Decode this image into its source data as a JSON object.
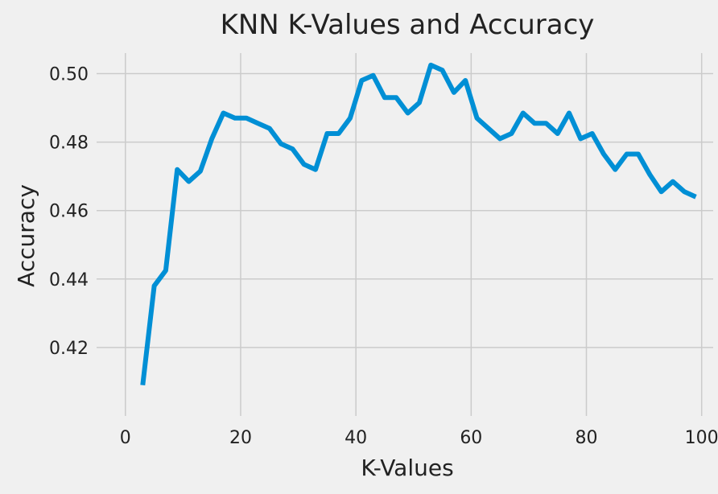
{
  "chart_data": {
    "type": "line",
    "title": "KNN K-Values and Accuracy",
    "xlabel": "K-Values",
    "ylabel": "Accuracy",
    "xlim": [
      -5,
      102
    ],
    "ylim": [
      0.4,
      0.506
    ],
    "xticks": [
      0,
      20,
      40,
      60,
      80,
      100
    ],
    "xtick_labels": [
      "0",
      "20",
      "40",
      "60",
      "80",
      "100"
    ],
    "yticks": [
      0.42,
      0.44,
      0.46,
      0.48,
      0.5
    ],
    "ytick_labels": [
      "0.42",
      "0.44",
      "0.46",
      "0.48",
      "0.50"
    ],
    "grid": true,
    "colors": {
      "line": "#008fd5",
      "grid": "#cbcbcb",
      "background": "#f0f0f0"
    },
    "series": [
      {
        "x": [
          3,
          5,
          7,
          9,
          11,
          13,
          15,
          17,
          19,
          21,
          23,
          25,
          27,
          29,
          31,
          33,
          35,
          37,
          39,
          41,
          43,
          45,
          47,
          49,
          51,
          53,
          55,
          57,
          59,
          61,
          63,
          65,
          67,
          69,
          71,
          73,
          75,
          77,
          79,
          81,
          83,
          85,
          87,
          89,
          91,
          93,
          95,
          97,
          99
        ],
        "values": [
          0.409,
          0.438,
          0.4425,
          0.472,
          0.4685,
          0.4715,
          0.481,
          0.4885,
          0.487,
          0.487,
          0.4855,
          0.484,
          0.4795,
          0.478,
          0.4735,
          0.472,
          0.4825,
          0.4825,
          0.487,
          0.498,
          0.4995,
          0.493,
          0.493,
          0.4885,
          0.4915,
          0.5025,
          0.501,
          0.4945,
          0.498,
          0.487,
          0.484,
          0.481,
          0.4825,
          0.4885,
          0.4855,
          0.4855,
          0.4825,
          0.4885,
          0.481,
          0.4825,
          0.4765,
          0.472,
          0.4765,
          0.4765,
          0.4705,
          0.4655,
          0.4685,
          0.4655,
          0.464
        ]
      }
    ]
  }
}
